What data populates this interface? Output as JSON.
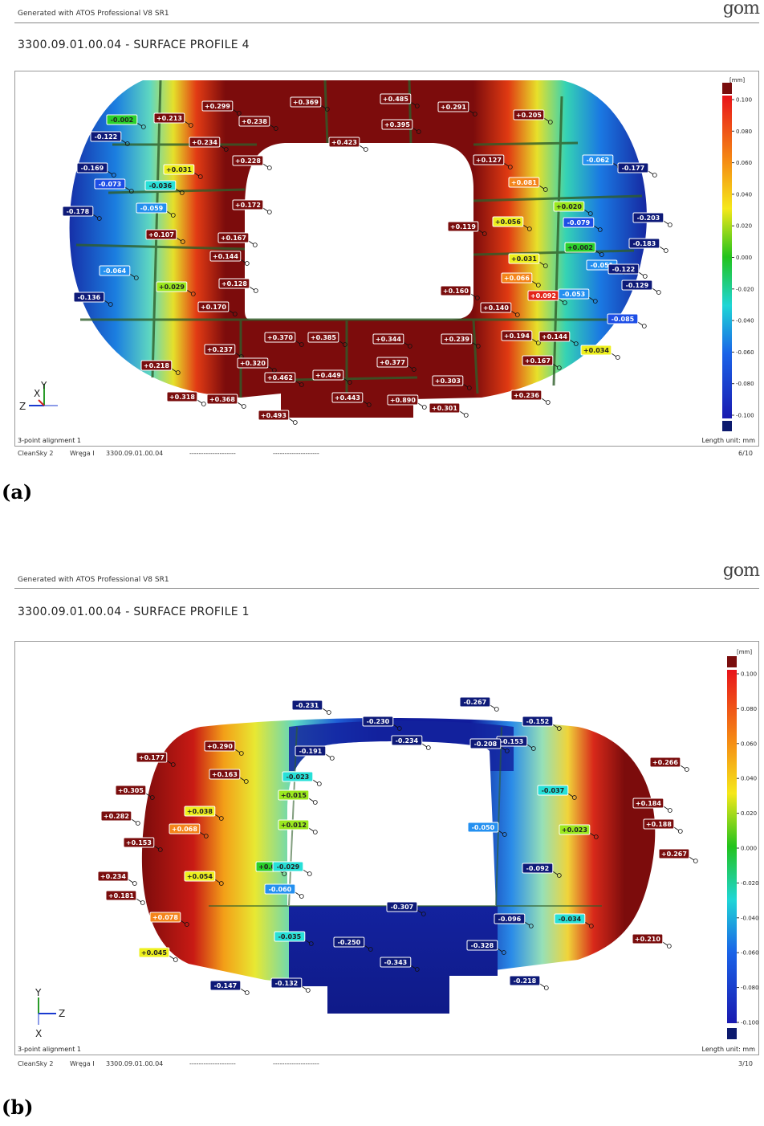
{
  "panels": [
    {
      "generated": "Generated with ATOS Professional V8 SR1",
      "logo": "gom",
      "title": "3300.09.01.00.04 - SURFACE PROFILE 4",
      "alignment": "3-point alignment 1",
      "length_unit": "Length unit: mm",
      "footer": {
        "project": "CleanSky 2",
        "part": "Wręga I",
        "id": "3300.09.01.00.04",
        "dash1": "--------------------",
        "dash2": "--------------------",
        "page": "6/10"
      },
      "caption": "(a)",
      "axis_labels": {
        "a": "Y",
        "b": "X",
        "c": "Z"
      },
      "deviation_labels": [
        "-0.002",
        "+0.213",
        "+0.299",
        "+0.238",
        "+0.369",
        "+0.485",
        "+0.395",
        "+0.291",
        "+0.205",
        "-0.122",
        "+0.234",
        "+0.423",
        "-0.169",
        "+0.031",
        "+0.228",
        "+0.127",
        "-0.062",
        "-0.177",
        "-0.073",
        "-0.036",
        "+0.081",
        "-0.178",
        "-0.059",
        "+0.172",
        "+0.119",
        "+0.020",
        "-0.203",
        "+0.107",
        "+0.167",
        "+0.056",
        "-0.079",
        "-0.183",
        "+0.002",
        "+0.144",
        "+0.031",
        "-0.051",
        "-0.122",
        "-0.064",
        "+0.128",
        "+0.066",
        "-0.129",
        "+0.029",
        "+0.160",
        "-0.053",
        "-0.136",
        "+0.170",
        "+0.092",
        "+0.140",
        "-0.085",
        "+0.370",
        "+0.385",
        "+0.344",
        "+0.239",
        "+0.194",
        "+0.144",
        "+0.237",
        "+0.034",
        "+0.218",
        "+0.320",
        "+0.377",
        "+0.167",
        "+0.449",
        "+0.462",
        "+0.303",
        "+0.318",
        "+0.368",
        "+0.443",
        "+0.890",
        "+0.236",
        "+0.301",
        "+0.493"
      ]
    },
    {
      "generated": "Generated with ATOS Professional V8 SR1",
      "logo": "gom",
      "title": "3300.09.01.00.04 - SURFACE PROFILE 1",
      "alignment": "3-point alignment 1",
      "length_unit": "Length unit: mm",
      "footer": {
        "project": "CleanSky 2",
        "part": "Wręga I",
        "id": "3300.09.01.00.04",
        "dash1": "--------------------",
        "dash2": "--------------------",
        "page": "3/10"
      },
      "caption": "(b)",
      "axis_labels": {
        "a": "Y",
        "b": "Z",
        "c": "X"
      },
      "deviation_labels": [
        "-0.231",
        "-0.267",
        "-0.230",
        "-0.152",
        "+0.290",
        "-0.153",
        "+0.177",
        "+0.163",
        "-0.191",
        "-0.234",
        "-0.208",
        "+0.266",
        "-0.023",
        "+0.305",
        "+0.015",
        "-0.037",
        "+0.184",
        "+0.038",
        "+0.282",
        "+0.012",
        "-0.050",
        "+0.023",
        "+0.188",
        "+0.068",
        "+0.153",
        "+0.0",
        "-0.029",
        "-0.092",
        "+0.267",
        "+0.234",
        "+0.054",
        "-0.060",
        "+0.181",
        "-0.307",
        "+0.078",
        "-0.096",
        "-0.034",
        "-0.035",
        "-0.250",
        "+0.210",
        "+0.045",
        "-0.343",
        "-0.328",
        "-0.218",
        "-0.147",
        "-0.132"
      ]
    }
  ],
  "scale": {
    "unit": "[mm]",
    "ticks": [
      "0.100",
      "0.080",
      "0.060",
      "0.040",
      "0.020",
      "0.000",
      "-0.020",
      "-0.040",
      "-0.060",
      "-0.080",
      "-0.100"
    ],
    "colors": {
      "over": "#7a0d0d",
      "under": "#0c1a6e"
    }
  }
}
